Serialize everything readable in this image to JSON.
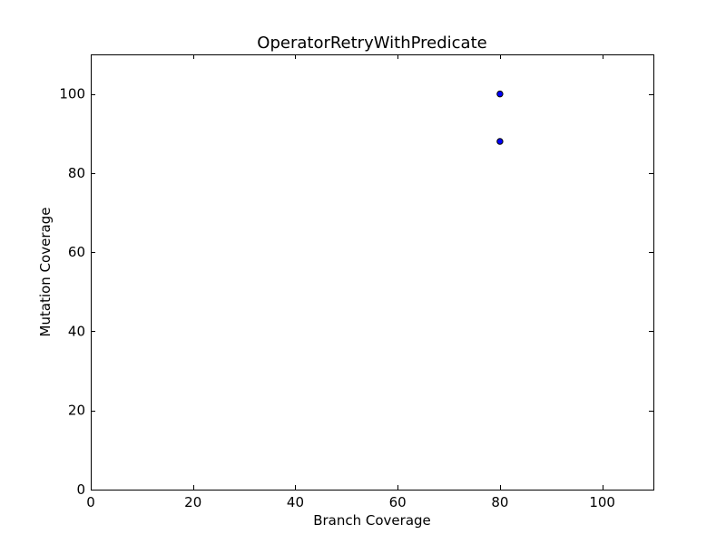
{
  "chart_data": {
    "type": "scatter",
    "title": "OperatorRetryWithPredicate",
    "xlabel": "Branch Coverage",
    "ylabel": "Mutation Coverage",
    "xlim": [
      0,
      110
    ],
    "ylim": [
      0,
      110
    ],
    "xticks": [
      0,
      20,
      40,
      60,
      80,
      100
    ],
    "yticks": [
      0,
      20,
      40,
      60,
      80,
      100
    ],
    "grid": false,
    "point_color": "#0000ff",
    "points": [
      {
        "x": 80,
        "y": 100
      },
      {
        "x": 80,
        "y": 88
      }
    ]
  }
}
